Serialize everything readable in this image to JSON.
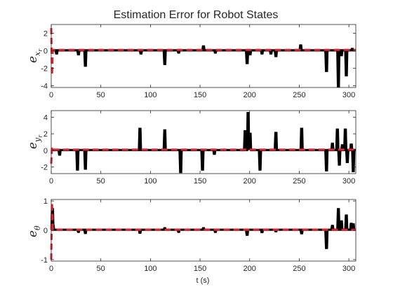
{
  "figure": {
    "title": "Estimation Error for Robot States",
    "xlabel": "t (s)"
  },
  "colors": {
    "error": "#000000",
    "reference": "#e8212a",
    "axis": "#262626",
    "background": "#ffffff"
  },
  "chart_data": [
    {
      "type": "line",
      "ylabel": "e",
      "ylabel_subscript": "x",
      "ylabel_subsubscript": "r",
      "xlim": [
        0,
        307
      ],
      "ylim": [
        -4.2,
        3
      ],
      "xticks": [
        0,
        50,
        100,
        150,
        200,
        250,
        300
      ],
      "yticks": [
        -4,
        -2,
        0,
        2
      ],
      "series": [
        {
          "style": "solid-black",
          "baseline": 0.05,
          "spikes": [
            [
              5,
              -0.3
            ],
            [
              27,
              -0.4
            ],
            [
              34,
              -1.7
            ],
            [
              90,
              -0.3
            ],
            [
              114,
              -1.5
            ],
            [
              128,
              -0.2
            ],
            [
              153,
              0.5
            ],
            [
              165,
              -0.2
            ],
            [
              197,
              -1.4
            ],
            [
              200,
              -0.4
            ],
            [
              212,
              -0.3
            ],
            [
              221,
              -0.3
            ],
            [
              226,
              -0.6
            ],
            [
              251,
              0.6
            ],
            [
              277,
              -2.3
            ],
            [
              289,
              -4.2
            ],
            [
              292,
              -0.5
            ],
            [
              297,
              -2.8
            ],
            [
              303,
              0.2
            ]
          ]
        },
        {
          "style": "dashed-red",
          "points": [
            [
              0,
              2.6
            ],
            [
              0.8,
              -2.8
            ],
            [
              1.6,
              0.1
            ],
            [
              307,
              0.1
            ]
          ]
        }
      ]
    },
    {
      "type": "line",
      "ylabel": "e",
      "ylabel_subscript": "y",
      "ylabel_subsubscript": "r",
      "xlim": [
        0,
        307
      ],
      "ylim": [
        -2.8,
        4.8
      ],
      "xticks": [
        0,
        50,
        100,
        150,
        200,
        250,
        300
      ],
      "yticks": [
        -2,
        0,
        2,
        4
      ],
      "series": [
        {
          "style": "solid-black",
          "baseline": 0.05,
          "spikes": [
            [
              8,
              -0.5
            ],
            [
              26,
              -2.3
            ],
            [
              34,
              -2.2
            ],
            [
              89,
              2.6
            ],
            [
              114,
              2.4
            ],
            [
              130,
              -2.6
            ],
            [
              152,
              -2.3
            ],
            [
              164,
              -0.4
            ],
            [
              195,
              2.3
            ],
            [
              198,
              4.5
            ],
            [
              200,
              2.0
            ],
            [
              210,
              -2.3
            ],
            [
              226,
              2.1
            ],
            [
              252,
              2.6
            ],
            [
              277,
              -2.4
            ],
            [
              283,
              0.8
            ],
            [
              288,
              2.5
            ],
            [
              290,
              -1.7
            ],
            [
              293,
              0.6
            ],
            [
              296,
              2.5
            ],
            [
              298,
              -1.4
            ],
            [
              302,
              0.7
            ],
            [
              304,
              -2.5
            ]
          ]
        },
        {
          "style": "dashed-red",
          "points": [
            [
              0,
              -1.6
            ],
            [
              0.8,
              0.4
            ],
            [
              1.6,
              0.1
            ],
            [
              307,
              0.1
            ]
          ]
        }
      ]
    },
    {
      "type": "line",
      "ylabel": "e",
      "ylabel_subscript": "θ",
      "ylabel_subsubscript": "",
      "xlim": [
        0,
        307
      ],
      "ylim": [
        -1.05,
        1.05
      ],
      "xticks": [
        0,
        50,
        100,
        150,
        200,
        250,
        300
      ],
      "yticks": [
        -1,
        0,
        1
      ],
      "series": [
        {
          "style": "solid-black",
          "baseline": 0.02,
          "spikes": [
            [
              0.8,
              0.72
            ],
            [
              1.5,
              0.15
            ],
            [
              27,
              -0.05
            ],
            [
              34,
              -0.09
            ],
            [
              89,
              -0.08
            ],
            [
              114,
              0.07
            ],
            [
              128,
              -0.05
            ],
            [
              153,
              0.07
            ],
            [
              165,
              -0.05
            ],
            [
              197,
              -0.15
            ],
            [
              212,
              -0.06
            ],
            [
              226,
              -0.03
            ],
            [
              252,
              -0.1
            ],
            [
              277,
              -0.6
            ],
            [
              283,
              0.15
            ],
            [
              289,
              0.72
            ],
            [
              292,
              0.3
            ],
            [
              297,
              0.5
            ],
            [
              302,
              0.22
            ],
            [
              304,
              0.2
            ]
          ]
        },
        {
          "style": "dashed-red",
          "points": [
            [
              0,
              -1.0
            ],
            [
              0.8,
              0.95
            ],
            [
              1.6,
              0.02
            ],
            [
              307,
              0.02
            ]
          ]
        }
      ]
    }
  ]
}
